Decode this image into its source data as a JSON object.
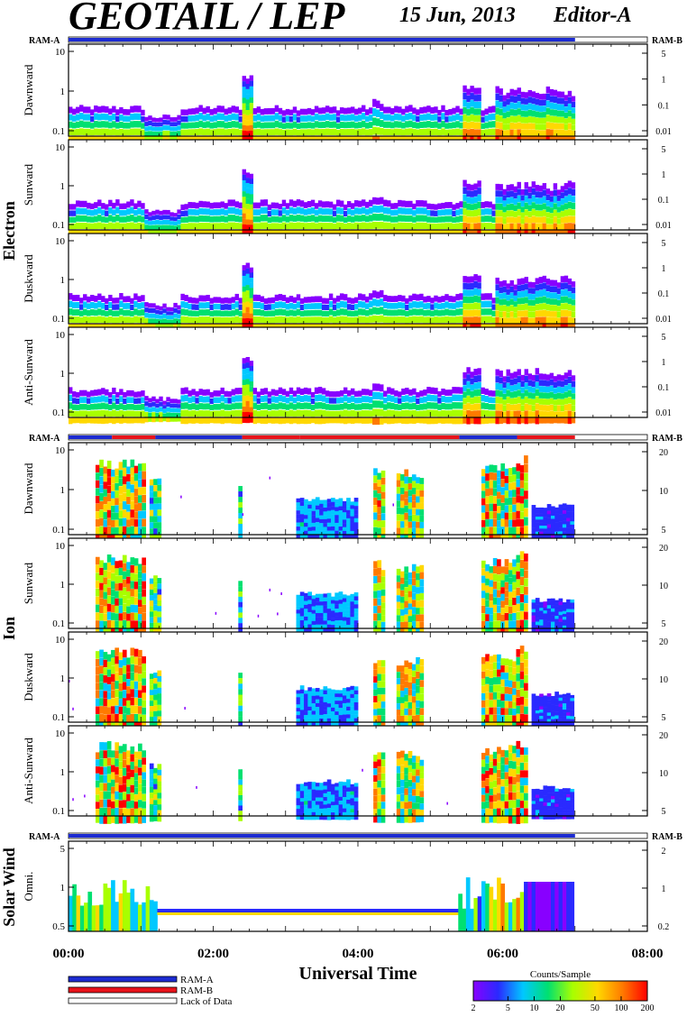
{
  "header": {
    "title": "GEOTAIL / LEP",
    "date": "15 Jun, 2013",
    "editor": "Editor-A"
  },
  "chart_data": {
    "type": "heatmap",
    "xlabel": "Universal Time",
    "x_ticks": [
      "00:00",
      "02:00",
      "04:00",
      "06:00",
      "08:00"
    ],
    "x_range_hours": [
      0,
      8
    ],
    "data_end_hour": 7.0,
    "ram_label_left": "RAM-A",
    "ram_label_right": "RAM-B",
    "groups": [
      {
        "name": "Electron",
        "ram_bar": "blue",
        "panels": [
          {
            "label": "Dawnward",
            "y_ticks": [
              "10",
              "1",
              "0.1"
            ],
            "right_ticks": [
              "5",
              "1",
              "0.1",
              "0.01"
            ]
          },
          {
            "label": "Sunward",
            "y_ticks": [
              "10",
              "1",
              "0.1"
            ],
            "right_ticks": [
              "5",
              "1",
              "0.1",
              "0.01"
            ]
          },
          {
            "label": "Duskward",
            "y_ticks": [
              "10",
              "1",
              "0.1"
            ],
            "right_ticks": [
              "5",
              "1",
              "0.1",
              "0.01"
            ]
          },
          {
            "label": "Anti-Sunward",
            "y_ticks": [
              "10",
              "1",
              "0.1"
            ],
            "right_ticks": [
              "5",
              "1",
              "0.1",
              "0.01"
            ]
          }
        ]
      },
      {
        "name": "Ion",
        "ram_bar": "mixed",
        "panels": [
          {
            "label": "Dawnward",
            "y_ticks": [
              "10",
              "1",
              "0.1"
            ],
            "right_ticks": [
              "20",
              "10",
              "5"
            ]
          },
          {
            "label": "Sunward",
            "y_ticks": [
              "10",
              "1",
              "0.1"
            ],
            "right_ticks": [
              "20",
              "10",
              "5"
            ]
          },
          {
            "label": "Duskward",
            "y_ticks": [
              "10",
              "1",
              "0.1"
            ],
            "right_ticks": [
              "20",
              "10",
              "5"
            ]
          },
          {
            "label": "Anti-Sunward",
            "y_ticks": [
              "10",
              "1",
              "0.1"
            ],
            "right_ticks": [
              "20",
              "10",
              "5"
            ]
          }
        ]
      },
      {
        "name": "Solar Wind",
        "ram_bar": "blue",
        "panels": [
          {
            "label": "Omni.",
            "y_ticks": [
              "5",
              "1",
              "0.5"
            ],
            "right_ticks": [
              "2",
              "1",
              "0.2"
            ]
          }
        ]
      }
    ],
    "legend": {
      "items": [
        "RAM-A",
        "RAM-B",
        "Lack of Data"
      ],
      "colors": {
        "RAM-A": "#1c2bd1",
        "RAM-B": "#e8131a",
        "Lack of Data": "#ffffff"
      }
    },
    "colorbar": {
      "title": "Counts/Sample",
      "ticks": [
        "2",
        "5",
        "10",
        "20",
        "50",
        "100",
        "200"
      ],
      "tick_values": [
        2,
        5,
        10,
        20,
        50,
        100,
        200
      ],
      "range": [
        2,
        200
      ],
      "scale": "log",
      "colors": [
        "#8800ff",
        "#2a2aff",
        "#00c8ff",
        "#00e070",
        "#a8ff00",
        "#ffd800",
        "#ff7a00",
        "#ff0000"
      ]
    }
  }
}
